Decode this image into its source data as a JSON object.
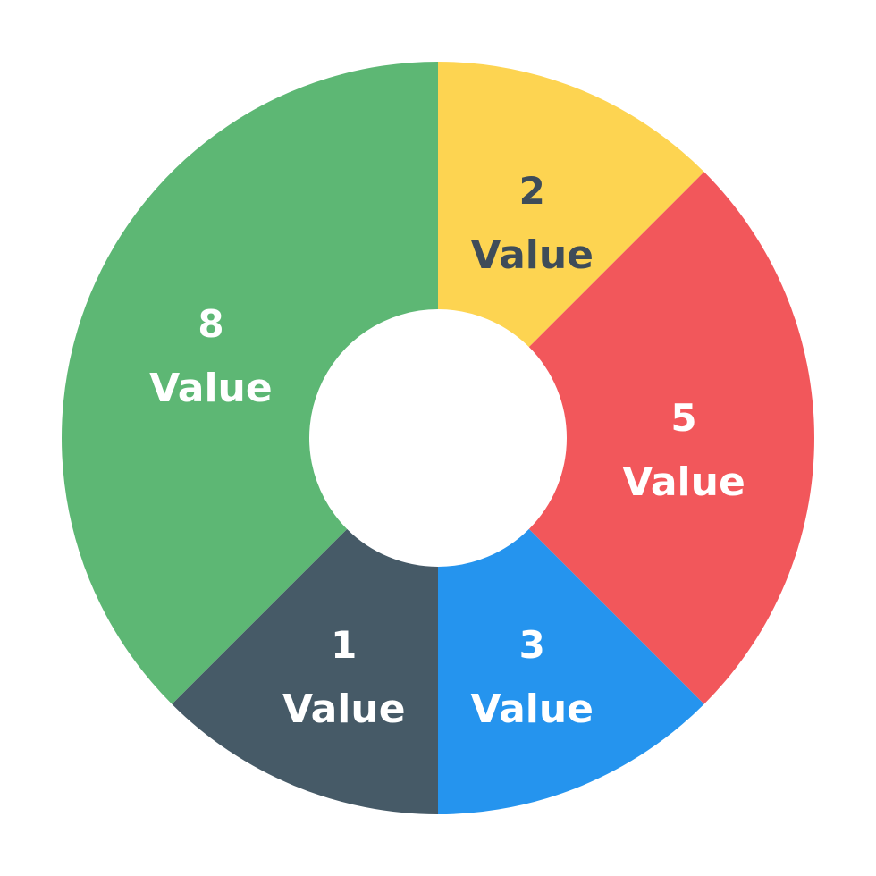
{
  "chart_data": {
    "type": "pie",
    "variant": "donut",
    "start": "top",
    "direction": "clockwise",
    "slices": [
      {
        "number": "2",
        "label": "Value",
        "share": 0.125,
        "color": "#FDD451",
        "text_color": "#3E4C59"
      },
      {
        "number": "5",
        "label": "Value",
        "share": 0.25,
        "color": "#F2575B",
        "text_color": "#FFFFFF"
      },
      {
        "number": "3",
        "label": "Value",
        "share": 0.125,
        "color": "#2594EE",
        "text_color": "#FFFFFF"
      },
      {
        "number": "1",
        "label": "Value",
        "share": 0.125,
        "color": "#465A67",
        "text_color": "#FFFFFF"
      },
      {
        "number": "8",
        "label": "Value",
        "share": 0.375,
        "color": "#5DB774",
        "text_color": "#FFFFFF"
      }
    ]
  }
}
